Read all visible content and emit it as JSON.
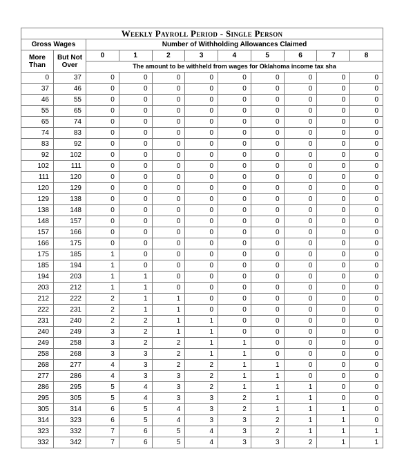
{
  "title": "Weekly Payroll Period - Single Person",
  "h_gross": "Gross Wages",
  "h_more": "More Than",
  "h_but": "But Not Over",
  "h_allow": "Number of Withholding Allowances Claimed",
  "h_sub": "The amount to be withheld from wages for Oklahoma income tax sha",
  "cols": [
    "0",
    "1",
    "2",
    "3",
    "4",
    "5",
    "6",
    "7",
    "8"
  ],
  "rows": [
    [
      0,
      37,
      0,
      0,
      0,
      0,
      0,
      0,
      0,
      0,
      0
    ],
    [
      37,
      46,
      0,
      0,
      0,
      0,
      0,
      0,
      0,
      0,
      0
    ],
    [
      46,
      55,
      0,
      0,
      0,
      0,
      0,
      0,
      0,
      0,
      0
    ],
    [
      55,
      65,
      0,
      0,
      0,
      0,
      0,
      0,
      0,
      0,
      0
    ],
    [
      65,
      74,
      0,
      0,
      0,
      0,
      0,
      0,
      0,
      0,
      0
    ],
    [
      74,
      83,
      0,
      0,
      0,
      0,
      0,
      0,
      0,
      0,
      0
    ],
    [
      83,
      92,
      0,
      0,
      0,
      0,
      0,
      0,
      0,
      0,
      0
    ],
    [
      92,
      102,
      0,
      0,
      0,
      0,
      0,
      0,
      0,
      0,
      0
    ],
    [
      102,
      111,
      0,
      0,
      0,
      0,
      0,
      0,
      0,
      0,
      0
    ],
    [
      111,
      120,
      0,
      0,
      0,
      0,
      0,
      0,
      0,
      0,
      0
    ],
    [
      120,
      129,
      0,
      0,
      0,
      0,
      0,
      0,
      0,
      0,
      0
    ],
    [
      129,
      138,
      0,
      0,
      0,
      0,
      0,
      0,
      0,
      0,
      0
    ],
    [
      138,
      148,
      0,
      0,
      0,
      0,
      0,
      0,
      0,
      0,
      0
    ],
    [
      148,
      157,
      0,
      0,
      0,
      0,
      0,
      0,
      0,
      0,
      0
    ],
    [
      157,
      166,
      0,
      0,
      0,
      0,
      0,
      0,
      0,
      0,
      0
    ],
    [
      166,
      175,
      0,
      0,
      0,
      0,
      0,
      0,
      0,
      0,
      0
    ],
    [
      175,
      185,
      1,
      0,
      0,
      0,
      0,
      0,
      0,
      0,
      0
    ],
    [
      185,
      194,
      1,
      0,
      0,
      0,
      0,
      0,
      0,
      0,
      0
    ],
    [
      194,
      203,
      1,
      1,
      0,
      0,
      0,
      0,
      0,
      0,
      0
    ],
    [
      203,
      212,
      1,
      1,
      0,
      0,
      0,
      0,
      0,
      0,
      0
    ],
    [
      212,
      222,
      2,
      1,
      1,
      0,
      0,
      0,
      0,
      0,
      0
    ],
    [
      222,
      231,
      2,
      1,
      1,
      0,
      0,
      0,
      0,
      0,
      0
    ],
    [
      231,
      240,
      2,
      2,
      1,
      1,
      0,
      0,
      0,
      0,
      0
    ],
    [
      240,
      249,
      3,
      2,
      1,
      1,
      0,
      0,
      0,
      0,
      0
    ],
    [
      249,
      258,
      3,
      2,
      2,
      1,
      1,
      0,
      0,
      0,
      0
    ],
    [
      258,
      268,
      3,
      3,
      2,
      1,
      1,
      0,
      0,
      0,
      0
    ],
    [
      268,
      277,
      4,
      3,
      2,
      2,
      1,
      1,
      0,
      0,
      0
    ],
    [
      277,
      286,
      4,
      3,
      3,
      2,
      1,
      1,
      0,
      0,
      0
    ],
    [
      286,
      295,
      5,
      4,
      3,
      2,
      1,
      1,
      1,
      0,
      0
    ],
    [
      295,
      305,
      5,
      4,
      3,
      3,
      2,
      1,
      1,
      0,
      0
    ],
    [
      305,
      314,
      6,
      5,
      4,
      3,
      2,
      1,
      1,
      1,
      0
    ],
    [
      314,
      323,
      6,
      5,
      4,
      3,
      3,
      2,
      1,
      1,
      0
    ],
    [
      323,
      332,
      7,
      6,
      5,
      4,
      3,
      2,
      1,
      1,
      1
    ],
    [
      332,
      342,
      7,
      6,
      5,
      4,
      3,
      3,
      2,
      1,
      1
    ]
  ]
}
